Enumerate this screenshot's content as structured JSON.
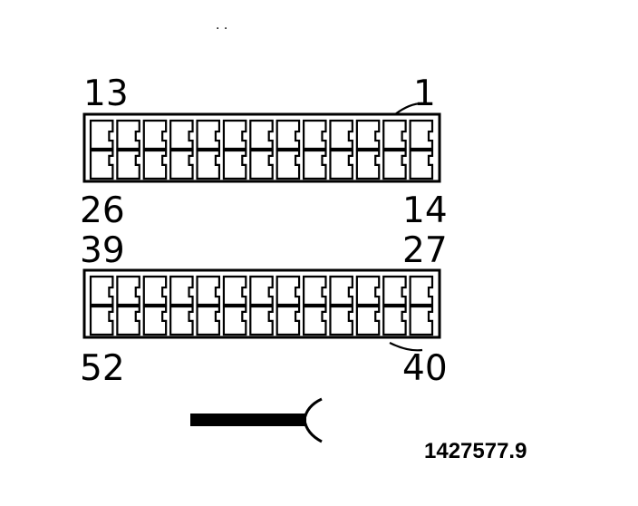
{
  "connector": {
    "upper_block": {
      "label_top_left": "13",
      "label_top_right": "1",
      "label_bottom_left": "26",
      "label_bottom_right": "14",
      "columns": 13
    },
    "lower_block": {
      "label_top_left": "39",
      "label_top_right": "27",
      "label_bottom_left": "52",
      "label_bottom_right": "40",
      "columns": 13
    },
    "stray_marks": ". ."
  },
  "reference_number": "1427577.9"
}
